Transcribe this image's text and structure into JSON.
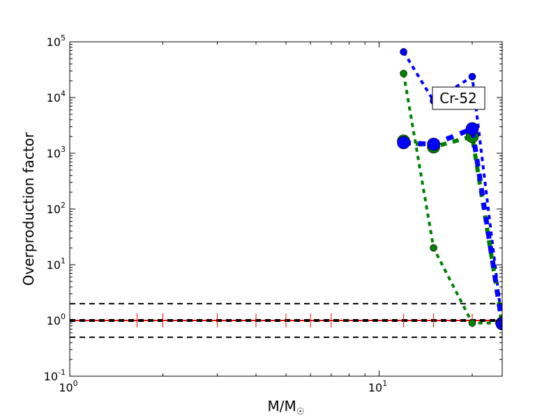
{
  "chart_data": {
    "type": "line",
    "title": "",
    "xlabel": "M/M",
    "xlabel_sub": "☉",
    "ylabel": "Overproduction factor",
    "xscale": "log",
    "yscale": "log",
    "xlim": [
      1,
      25
    ],
    "ylim": [
      0.1,
      100000
    ],
    "grid": false,
    "annotation": "Cr-52",
    "x_ticks": [
      {
        "base": "10",
        "exp": "0",
        "value": 1
      },
      {
        "base": "10",
        "exp": "1",
        "value": 10
      }
    ],
    "y_ticks": [
      {
        "base": "10",
        "exp": "-1",
        "value": 0.1
      },
      {
        "base": "10",
        "exp": "0",
        "value": 1
      },
      {
        "base": "10",
        "exp": "1",
        "value": 10
      },
      {
        "base": "10",
        "exp": "2",
        "value": 100
      },
      {
        "base": "10",
        "exp": "3",
        "value": 1000
      },
      {
        "base": "10",
        "exp": "4",
        "value": 10000
      },
      {
        "base": "10",
        "exp": "5",
        "value": 100000
      }
    ],
    "series": [
      {
        "name": "green-small",
        "color": "#008000",
        "x": [
          12,
          15,
          20,
          25
        ],
        "y": [
          27000,
          20,
          0.9,
          0.9
        ],
        "marker_size": 5,
        "line_width": 4
      },
      {
        "name": "blue-small",
        "color": "#0000ff",
        "x": [
          12,
          15,
          20,
          25
        ],
        "y": [
          66000,
          8700,
          23700,
          0.87
        ],
        "marker_size": 5,
        "line_width": 4
      },
      {
        "name": "green-large",
        "color": "#008000",
        "x": [
          12,
          15,
          20,
          25
        ],
        "y": [
          1650,
          1300,
          2000,
          0.9
        ],
        "marker_size": 9,
        "line_width": 6
      },
      {
        "name": "blue-large",
        "color": "#0000ff",
        "x": [
          12,
          15,
          20,
          25
        ],
        "y": [
          1550,
          1450,
          2750,
          0.87
        ],
        "marker_size": 9,
        "line_width": 7
      }
    ],
    "reference_lines": [
      {
        "y": 2,
        "color": "#000000",
        "style": "dashed"
      },
      {
        "y": 0.5,
        "color": "#000000",
        "style": "dashed"
      },
      {
        "y": 1,
        "color": "#ff0000",
        "style": "solid"
      },
      {
        "y": 1,
        "color": "#000000",
        "style": "dashed"
      }
    ],
    "red_marker_x": [
      1.65,
      2,
      3,
      4,
      5,
      6,
      7,
      12,
      15,
      20
    ]
  }
}
